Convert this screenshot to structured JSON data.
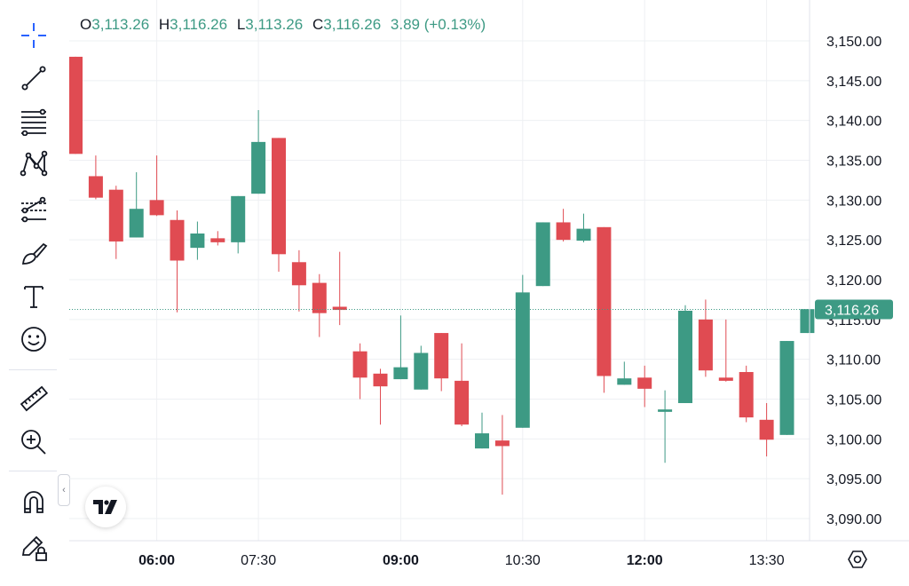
{
  "legend": {
    "open_label": "O",
    "open_value": "3,113.26",
    "high_label": "H",
    "high_value": "3,116.26",
    "low_label": "L",
    "low_value": "3,113.26",
    "close_label": "C",
    "close_value": "3,116.26",
    "change": "3.89 (+0.13%)"
  },
  "toolbar": {
    "tools": [
      "crosshair-icon",
      "trend-line-icon",
      "fib-retracement-icon",
      "pattern-icon",
      "forecast-icon",
      "brush-icon",
      "text-icon",
      "emoji-icon",
      "ruler-icon",
      "zoom-in-icon",
      "magnet-icon",
      "lock-drawings-icon"
    ],
    "collapse_glyph": "‹"
  },
  "colors": {
    "up": "#3d9a84",
    "down": "#e04b52",
    "grid": "#eef0f3",
    "price_line": "#3d9a84"
  },
  "chart_data": {
    "type": "candlestick",
    "ylim": [
      3086,
      3152
    ],
    "y_ticks": [
      "3,150.00",
      "3,145.00",
      "3,140.00",
      "3,135.00",
      "3,130.00",
      "3,125.00",
      "3,120.00",
      "3,115.00",
      "3,110.00",
      "3,105.00",
      "3,100.00",
      "3,095.00",
      "3,090.00"
    ],
    "x_ticks": [
      {
        "label": "06:00",
        "bold": true
      },
      {
        "label": "07:30",
        "bold": false
      },
      {
        "label": "09:00",
        "bold": true
      },
      {
        "label": "10:30",
        "bold": false
      },
      {
        "label": "12:00",
        "bold": true
      },
      {
        "label": "13:30",
        "bold": false
      }
    ],
    "x_tick_candle_index": [
      4,
      9,
      16,
      22,
      28,
      34
    ],
    "last_price": 3116.26,
    "last_price_label": "3,116.26",
    "candles": [
      {
        "o": 3148.0,
        "h": 3148.0,
        "l": 3135.8,
        "c": 3135.8
      },
      {
        "o": 3133.0,
        "h": 3135.6,
        "l": 3130.1,
        "c": 3130.3
      },
      {
        "o": 3131.3,
        "h": 3131.8,
        "l": 3122.6,
        "c": 3124.8
      },
      {
        "o": 3125.3,
        "h": 3133.5,
        "l": 3125.3,
        "c": 3128.9
      },
      {
        "o": 3130.0,
        "h": 3135.6,
        "l": 3128.0,
        "c": 3128.1
      },
      {
        "o": 3127.5,
        "h": 3128.7,
        "l": 3115.9,
        "c": 3122.4
      },
      {
        "o": 3124.0,
        "h": 3127.3,
        "l": 3122.5,
        "c": 3125.8
      },
      {
        "o": 3125.2,
        "h": 3126.1,
        "l": 3124.3,
        "c": 3124.7
      },
      {
        "o": 3124.7,
        "h": 3130.5,
        "l": 3123.3,
        "c": 3130.5
      },
      {
        "o": 3130.8,
        "h": 3141.3,
        "l": 3130.8,
        "c": 3137.3
      },
      {
        "o": 3137.8,
        "h": 3137.8,
        "l": 3121.0,
        "c": 3123.2
      },
      {
        "o": 3122.2,
        "h": 3123.7,
        "l": 3116.0,
        "c": 3119.3
      },
      {
        "o": 3119.6,
        "h": 3120.7,
        "l": 3112.8,
        "c": 3115.8
      },
      {
        "o": 3116.6,
        "h": 3123.5,
        "l": 3114.3,
        "c": 3116.2
      },
      {
        "o": 3111.0,
        "h": 3112.0,
        "l": 3105.0,
        "c": 3107.7
      },
      {
        "o": 3108.2,
        "h": 3108.8,
        "l": 3101.8,
        "c": 3106.6
      },
      {
        "o": 3107.5,
        "h": 3115.5,
        "l": 3107.5,
        "c": 3109.0
      },
      {
        "o": 3106.2,
        "h": 3111.7,
        "l": 3106.2,
        "c": 3110.8
      },
      {
        "o": 3113.3,
        "h": 3113.3,
        "l": 3106.0,
        "c": 3107.6
      },
      {
        "o": 3107.3,
        "h": 3112.0,
        "l": 3101.6,
        "c": 3101.8
      },
      {
        "o": 3098.8,
        "h": 3103.3,
        "l": 3098.8,
        "c": 3100.7
      },
      {
        "o": 3099.8,
        "h": 3103.0,
        "l": 3093.0,
        "c": 3099.1
      },
      {
        "o": 3101.4,
        "h": 3120.6,
        "l": 3101.4,
        "c": 3118.4
      },
      {
        "o": 3119.2,
        "h": 3127.2,
        "l": 3119.2,
        "c": 3127.2
      },
      {
        "o": 3127.2,
        "h": 3128.9,
        "l": 3124.8,
        "c": 3125.0
      },
      {
        "o": 3124.9,
        "h": 3128.3,
        "l": 3124.7,
        "c": 3126.4
      },
      {
        "o": 3126.6,
        "h": 3126.6,
        "l": 3105.8,
        "c": 3107.9
      },
      {
        "o": 3106.8,
        "h": 3109.7,
        "l": 3106.8,
        "c": 3107.6
      },
      {
        "o": 3107.7,
        "h": 3109.2,
        "l": 3104.0,
        "c": 3106.3
      },
      {
        "o": 3103.4,
        "h": 3106.1,
        "l": 3097.0,
        "c": 3103.7
      },
      {
        "o": 3104.5,
        "h": 3116.8,
        "l": 3104.5,
        "c": 3116.1
      },
      {
        "o": 3115.0,
        "h": 3117.5,
        "l": 3107.8,
        "c": 3108.6
      },
      {
        "o": 3107.7,
        "h": 3115.0,
        "l": 3107.2,
        "c": 3107.3
      },
      {
        "o": 3108.4,
        "h": 3109.2,
        "l": 3102.1,
        "c": 3102.7
      },
      {
        "o": 3102.4,
        "h": 3104.5,
        "l": 3097.8,
        "c": 3099.9
      },
      {
        "o": 3100.5,
        "h": 3112.3,
        "l": 3100.5,
        "c": 3112.3
      },
      {
        "o": 3113.3,
        "h": 3116.3,
        "l": 3113.3,
        "c": 3116.3
      }
    ]
  }
}
